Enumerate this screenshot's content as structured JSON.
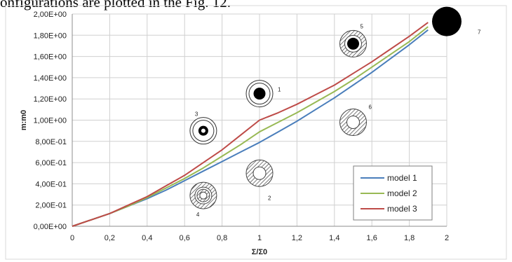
{
  "caption": "onfigurations are plotted in the Fig. 12.",
  "chart_data": {
    "type": "line",
    "title": "",
    "xlabel": "Σ/Σ0",
    "ylabel": "m:m0",
    "xlim": [
      0,
      2
    ],
    "ylim": [
      0,
      2
    ],
    "x_ticks": [
      "0",
      "0,2",
      "0,4",
      "0,6",
      "0,8",
      "1",
      "1,2",
      "1,4",
      "1,6",
      "1,8",
      "2"
    ],
    "y_ticks": [
      "0,00E+00",
      "2,00E-01",
      "4,00E-01",
      "6,00E-01",
      "8,00E-01",
      "1,00E+00",
      "1,20E+00",
      "1,40E+00",
      "1,60E+00",
      "1,80E+00",
      "2,00E+00"
    ],
    "grid": true,
    "legend_position": "bottom-right",
    "x": [
      0,
      0.1,
      0.2,
      0.3,
      0.4,
      0.5,
      0.6,
      0.7,
      0.8,
      0.9,
      1.0,
      1.1,
      1.2,
      1.3,
      1.4,
      1.5,
      1.6,
      1.7,
      1.8,
      1.9
    ],
    "series": [
      {
        "name": "model 1",
        "color": "#4a7ebb",
        "values": [
          0,
          0.06,
          0.12,
          0.19,
          0.26,
          0.34,
          0.43,
          0.52,
          0.61,
          0.7,
          0.79,
          0.89,
          0.99,
          1.1,
          1.21,
          1.33,
          1.45,
          1.58,
          1.71,
          1.85
        ]
      },
      {
        "name": "model 2",
        "color": "#98b954",
        "values": [
          0,
          0.06,
          0.12,
          0.19,
          0.27,
          0.36,
          0.45,
          0.55,
          0.66,
          0.77,
          0.89,
          0.98,
          1.07,
          1.17,
          1.27,
          1.38,
          1.5,
          1.62,
          1.74,
          1.88
        ]
      },
      {
        "name": "model 3",
        "color": "#be4b48",
        "values": [
          0,
          0.06,
          0.12,
          0.2,
          0.28,
          0.38,
          0.48,
          0.6,
          0.72,
          0.86,
          1.0,
          1.07,
          1.15,
          1.24,
          1.33,
          1.44,
          1.55,
          1.67,
          1.79,
          1.92
        ]
      }
    ],
    "annotations": [
      {
        "label": "1",
        "x": 1.0,
        "y": 1.25,
        "kind": "solid-core"
      },
      {
        "label": "2",
        "x": 1.0,
        "y": 0.5,
        "kind": "hatched-ring"
      },
      {
        "label": "3",
        "x": 0.7,
        "y": 0.9,
        "kind": "small-core"
      },
      {
        "label": "4",
        "x": 0.7,
        "y": 0.29,
        "kind": "hatched-double-ring"
      },
      {
        "label": "5",
        "x": 1.5,
        "y": 1.72,
        "kind": "hatched-core"
      },
      {
        "label": "6",
        "x": 1.5,
        "y": 0.98,
        "kind": "hatched-ring"
      },
      {
        "label": "7",
        "x": 2.0,
        "y": 1.93,
        "kind": "solid"
      }
    ]
  }
}
